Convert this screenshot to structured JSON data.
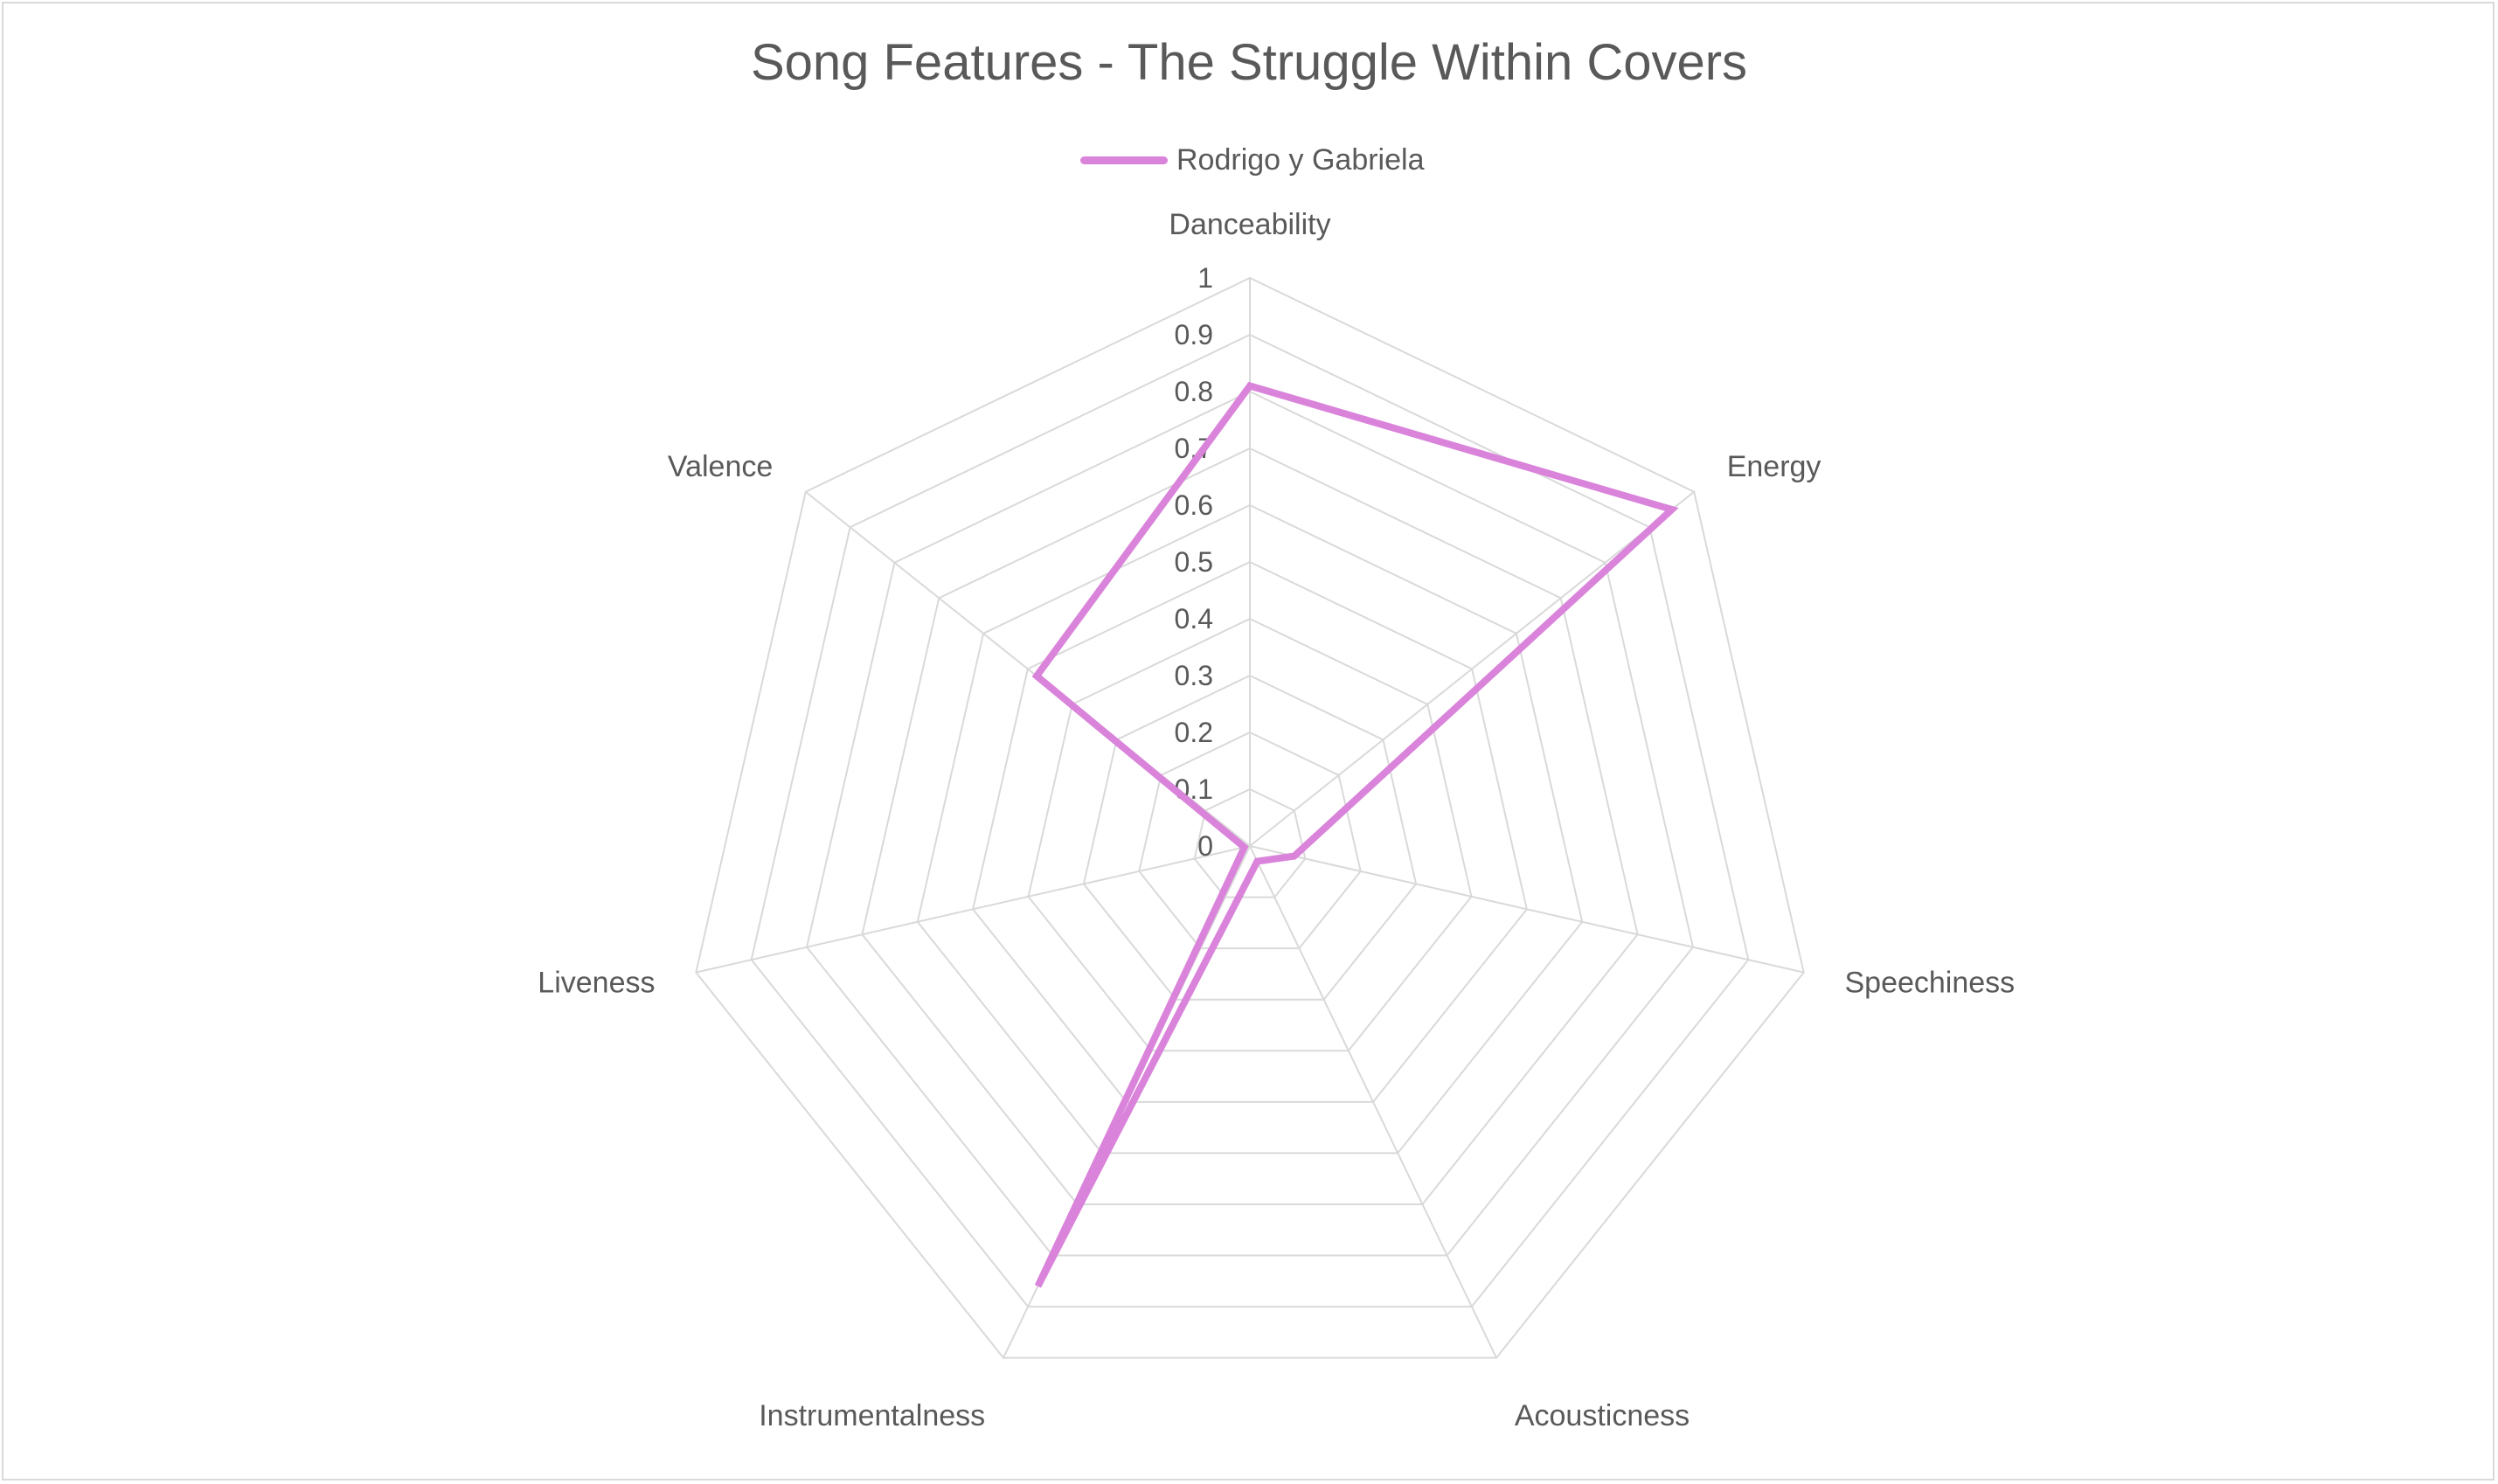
{
  "chart_data": {
    "type": "radar",
    "title": "Song Features - The Struggle Within Covers",
    "axes": [
      "Danceability",
      "Energy",
      "Speechiness",
      "Acousticness",
      "Instrumentalness",
      "Liveness",
      "Valence"
    ],
    "ticks": [
      "0",
      "0.1",
      "0.2",
      "0.3",
      "0.4",
      "0.5",
      "0.6",
      "0.7",
      "0.8",
      "0.9",
      "1"
    ],
    "range": [
      0,
      1
    ],
    "legend_position": "top",
    "series": [
      {
        "name": "Rodrigo y Gabriela",
        "color": "#DA83DA",
        "values": [
          0.81,
          0.95,
          0.08,
          0.03,
          0.86,
          0.01,
          0.48
        ]
      }
    ]
  }
}
